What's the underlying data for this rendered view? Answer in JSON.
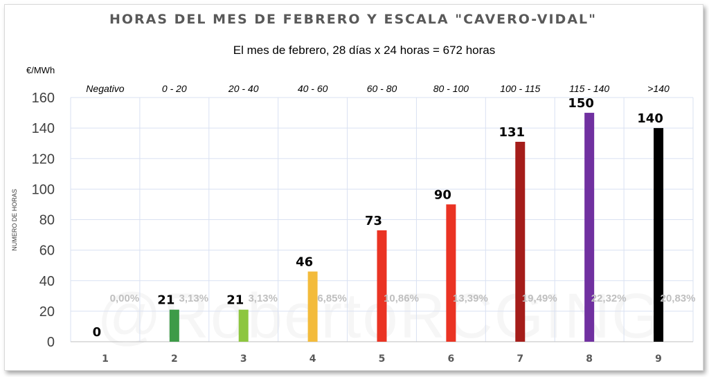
{
  "chart_data": {
    "type": "bar",
    "title": "HORAS DEL MES DE FEBRERO Y ESCALA \"CAVERO-VIDAL\"",
    "subtitle": "El mes de febrero, 28 días x 24 horas  = 672 horas",
    "unit_label": "€/MWh",
    "ylabel": "NUMERO DE HORAS",
    "xlabel": "",
    "ylim": [
      0,
      160
    ],
    "yticks": [
      0,
      20,
      40,
      60,
      80,
      100,
      120,
      140,
      160
    ],
    "grid": true,
    "legend": "none",
    "categories": [
      "1",
      "2",
      "3",
      "4",
      "5",
      "6",
      "7",
      "8",
      "9"
    ],
    "ranges": [
      "Negativo",
      "0 - 20",
      "20 - 40",
      "40 - 60",
      "60 - 80",
      "80 - 100",
      "100 - 115",
      "115 - 140",
      ">140"
    ],
    "values": [
      0,
      21,
      21,
      46,
      73,
      90,
      131,
      150,
      140
    ],
    "value_labels": [
      "0",
      "21",
      "21",
      "46",
      "73",
      "90",
      "131",
      "150",
      "140"
    ],
    "percent_labels": [
      "0,00%",
      "3,13%",
      "3,13%",
      "6,85%",
      "10,86%",
      "13,39%",
      "19,49%",
      "22,32%",
      "20,83%"
    ],
    "colors": [
      "#2e9e4f",
      "#3d9b48",
      "#8dc63f",
      "#f3bb3b",
      "#ea3323",
      "#ea3323",
      "#a51d1a",
      "#7030a0",
      "#000000"
    ]
  },
  "watermark": "@RobertoRCGING"
}
